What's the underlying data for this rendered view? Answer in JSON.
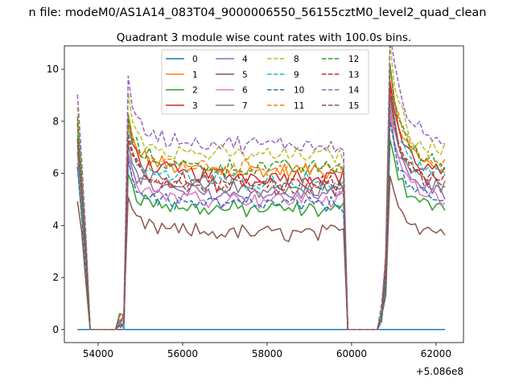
{
  "chart_data": {
    "type": "line",
    "suptitle": "n file: modeM0/AS1A14_083T04_9000006550_56155cztM0_level2_quad_clean",
    "title": "Quadrant 3 module wise count rates with 100.0s bins.",
    "xlabel": "",
    "ylabel": "",
    "xlim": [
      53200,
      62650
    ],
    "ylim": [
      -0.5,
      10.9
    ],
    "x_offset_label": "+5.086e8",
    "xticks": [
      54000,
      56000,
      58000,
      60000,
      62000
    ],
    "xtick_labels": [
      "54000",
      "56000",
      "58000",
      "60000",
      "62000"
    ],
    "yticks": [
      0,
      2,
      4,
      6,
      8,
      10
    ],
    "ytick_labels": [
      "0",
      "2",
      "4",
      "6",
      "8",
      "10"
    ],
    "bin_size_s": 100,
    "x_start": 53510,
    "x_end": 62270,
    "gaps": [
      [
        53800,
        54500
      ],
      [
        59880,
        60690
      ]
    ],
    "legend": {
      "placement": "top-center",
      "ncol": 4
    },
    "series": [
      {
        "name": "0",
        "color": "#1f77b4",
        "dash": "solid",
        "base": 0.0
      },
      {
        "name": "1",
        "color": "#ff7f0e",
        "dash": "solid",
        "base": 6.1
      },
      {
        "name": "2",
        "color": "#2ca02c",
        "dash": "solid",
        "base": 4.6
      },
      {
        "name": "3",
        "color": "#d62728",
        "dash": "solid",
        "base": 5.9
      },
      {
        "name": "4",
        "color": "#9467bd",
        "dash": "solid",
        "base": 5.2
      },
      {
        "name": "5",
        "color": "#8c564b",
        "dash": "solid",
        "base": 3.7
      },
      {
        "name": "6",
        "color": "#e377c2",
        "dash": "solid",
        "base": 5.0
      },
      {
        "name": "7",
        "color": "#7f7f7f",
        "dash": "solid",
        "base": 5.4
      },
      {
        "name": "8",
        "color": "#bcbd22",
        "dash": "dashed",
        "base": 6.7
      },
      {
        "name": "9",
        "color": "#17becf",
        "dash": "dashed",
        "base": 5.7
      },
      {
        "name": "10",
        "color": "#1f77b4",
        "dash": "dashed",
        "base": 4.8
      },
      {
        "name": "11",
        "color": "#ff7f0e",
        "dash": "dashed",
        "base": 6.2
      },
      {
        "name": "12",
        "color": "#2ca02c",
        "dash": "dashed",
        "base": 6.2
      },
      {
        "name": "13",
        "color": "#d62728",
        "dash": "dashed",
        "base": 5.6
      },
      {
        "name": "14",
        "color": "#9467bd",
        "dash": "dashed",
        "base": 7.1
      },
      {
        "name": "15",
        "color": "#8c564b",
        "dash": "dashed",
        "base": 5.5
      }
    ]
  }
}
